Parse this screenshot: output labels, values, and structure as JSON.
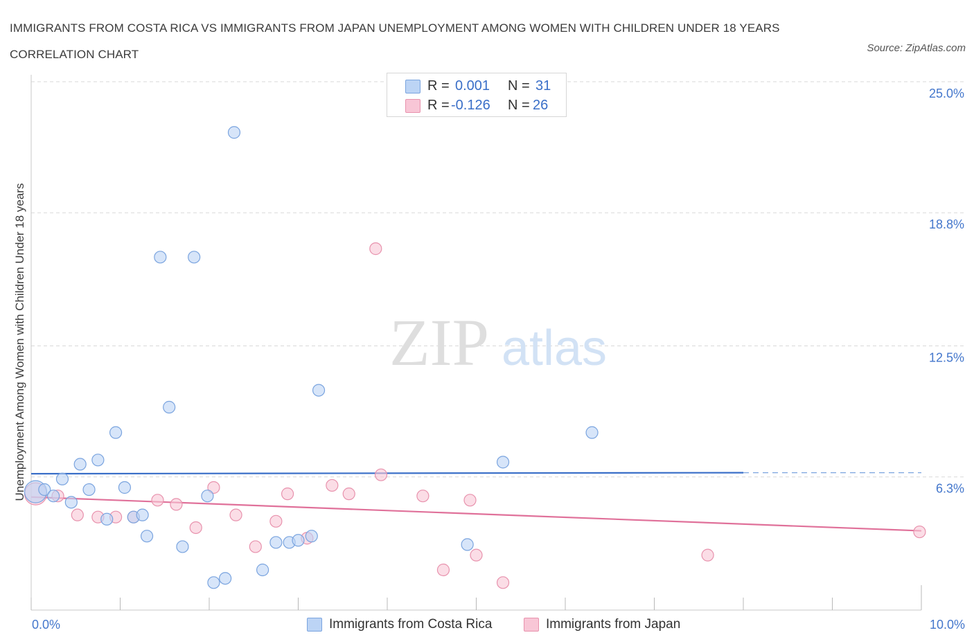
{
  "header": {
    "title": "IMMIGRANTS FROM COSTA RICA VS IMMIGRANTS FROM JAPAN UNEMPLOYMENT AMONG WOMEN WITH CHILDREN UNDER 18 YEARS CORRELATION CHART",
    "source": "Source: ZipAtlas.com"
  },
  "watermark": {
    "zip": "ZIP",
    "atlas": "atlas"
  },
  "legend": {
    "series1": {
      "r_label": "R =",
      "r_value": "0.001",
      "n_label": "N =",
      "n_value": "31"
    },
    "series2": {
      "r_label": "R =",
      "r_value": "-0.126",
      "n_label": "N =",
      "n_value": "26"
    }
  },
  "colors": {
    "blue_fill": "#bcd4f5",
    "blue_stroke": "#7aa4df",
    "blue_line": "#3a6fc8",
    "pink_fill": "#f8c6d6",
    "pink_stroke": "#e892ad",
    "pink_line": "#e0719a",
    "grid": "#d9d9d9",
    "axis_label": "#4477cc"
  },
  "chart_data": {
    "type": "scatter",
    "title": "IMMIGRANTS FROM COSTA RICA VS IMMIGRANTS FROM JAPAN UNEMPLOYMENT AMONG WOMEN WITH CHILDREN UNDER 18 YEARS CORRELATION CHART",
    "xlabel": "",
    "ylabel": "Unemployment Among Women with Children Under 18 years",
    "xlim": [
      0,
      10
    ],
    "ylim": [
      0,
      25
    ],
    "x_tick_labels": [
      "0.0%",
      "10.0%"
    ],
    "y_ticks": [
      6.3,
      12.5,
      18.8,
      25.0
    ],
    "y_tick_labels": [
      "6.3%",
      "12.5%",
      "18.8%",
      "25.0%"
    ],
    "legend_position": "top-center",
    "series": [
      {
        "name": "Immigrants from Costa Rica",
        "color": "#bcd4f5",
        "r": 0.001,
        "n": 31,
        "trend": {
          "x": [
            0.0,
            8.0
          ],
          "y": [
            6.45,
            6.5
          ],
          "dashed_to": 10.0
        },
        "points": [
          {
            "x": 0.05,
            "y": 5.6,
            "size": "large"
          },
          {
            "x": 0.15,
            "y": 5.7
          },
          {
            "x": 0.25,
            "y": 5.4
          },
          {
            "x": 0.35,
            "y": 6.2
          },
          {
            "x": 0.45,
            "y": 5.1
          },
          {
            "x": 0.55,
            "y": 6.9
          },
          {
            "x": 0.65,
            "y": 5.7
          },
          {
            "x": 0.75,
            "y": 7.1
          },
          {
            "x": 0.85,
            "y": 4.3
          },
          {
            "x": 0.95,
            "y": 8.4
          },
          {
            "x": 1.05,
            "y": 5.8
          },
          {
            "x": 1.15,
            "y": 4.4
          },
          {
            "x": 1.25,
            "y": 4.5
          },
          {
            "x": 1.3,
            "y": 3.5
          },
          {
            "x": 1.45,
            "y": 16.7
          },
          {
            "x": 1.55,
            "y": 9.6
          },
          {
            "x": 1.7,
            "y": 3.0
          },
          {
            "x": 1.83,
            "y": 16.7
          },
          {
            "x": 1.98,
            "y": 5.4
          },
          {
            "x": 2.05,
            "y": 1.3
          },
          {
            "x": 2.18,
            "y": 1.5
          },
          {
            "x": 2.28,
            "y": 22.6
          },
          {
            "x": 2.6,
            "y": 1.9
          },
          {
            "x": 2.75,
            "y": 3.2
          },
          {
            "x": 2.9,
            "y": 3.2
          },
          {
            "x": 3.0,
            "y": 3.3
          },
          {
            "x": 3.15,
            "y": 3.5
          },
          {
            "x": 3.23,
            "y": 10.4
          },
          {
            "x": 4.9,
            "y": 3.1
          },
          {
            "x": 5.3,
            "y": 7.0
          },
          {
            "x": 6.3,
            "y": 8.4
          }
        ]
      },
      {
        "name": "Immigrants from Japan",
        "color": "#f8c6d6",
        "r": -0.126,
        "n": 26,
        "trend": {
          "x": [
            0.0,
            10.0
          ],
          "y": [
            5.35,
            3.75
          ]
        },
        "points": [
          {
            "x": 0.05,
            "y": 5.5,
            "size": "large"
          },
          {
            "x": 0.3,
            "y": 5.4
          },
          {
            "x": 0.52,
            "y": 4.5
          },
          {
            "x": 0.75,
            "y": 4.4
          },
          {
            "x": 0.95,
            "y": 4.4
          },
          {
            "x": 1.15,
            "y": 4.4
          },
          {
            "x": 1.42,
            "y": 5.2
          },
          {
            "x": 1.63,
            "y": 5.0
          },
          {
            "x": 1.85,
            "y": 3.9
          },
          {
            "x": 2.05,
            "y": 5.8
          },
          {
            "x": 2.3,
            "y": 4.5
          },
          {
            "x": 2.52,
            "y": 3.0
          },
          {
            "x": 2.75,
            "y": 4.2
          },
          {
            "x": 2.88,
            "y": 5.5
          },
          {
            "x": 3.1,
            "y": 3.4
          },
          {
            "x": 3.38,
            "y": 5.9
          },
          {
            "x": 3.57,
            "y": 5.5
          },
          {
            "x": 3.87,
            "y": 17.1
          },
          {
            "x": 3.93,
            "y": 6.4
          },
          {
            "x": 4.4,
            "y": 5.4
          },
          {
            "x": 4.63,
            "y": 1.9
          },
          {
            "x": 4.93,
            "y": 5.2
          },
          {
            "x": 5.0,
            "y": 2.6
          },
          {
            "x": 5.3,
            "y": 1.3
          },
          {
            "x": 7.6,
            "y": 2.6
          },
          {
            "x": 9.98,
            "y": 3.7
          }
        ]
      }
    ]
  },
  "bottom_legend": {
    "item1": "Immigrants from Costa Rica",
    "item2": "Immigrants from Japan"
  }
}
